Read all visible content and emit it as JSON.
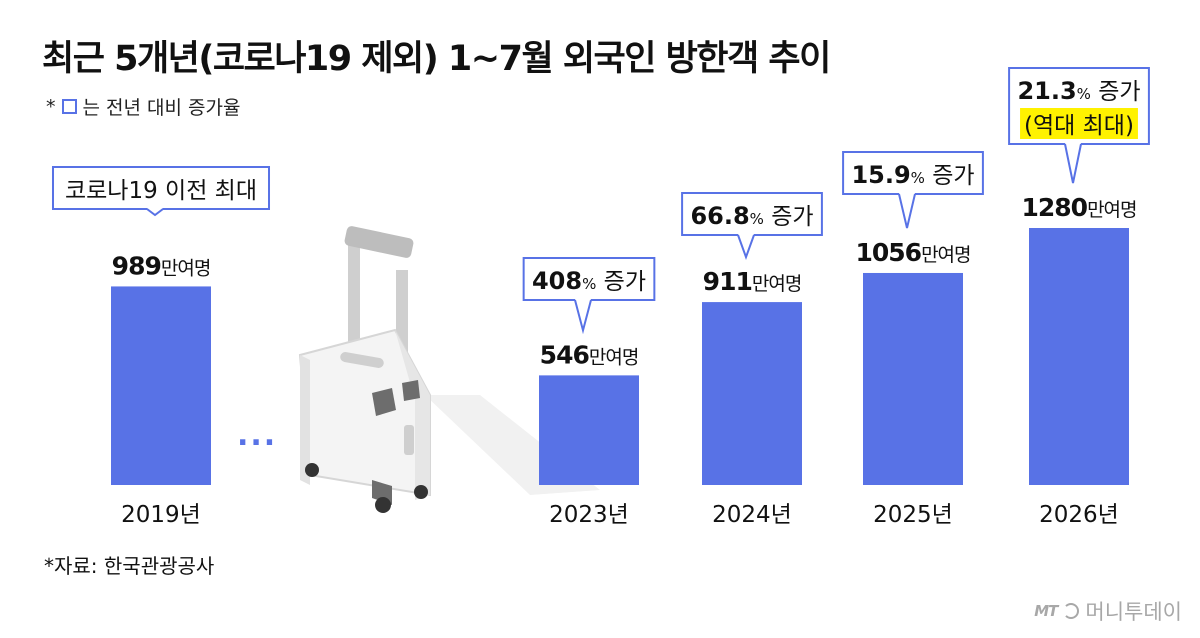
{
  "header": {
    "title": "최근 5개년(코로나19 제외) 1~7월 외국인 방한객 추이",
    "note_prefix": "*",
    "note_text": "는 전년 대비 증가율"
  },
  "footer": {
    "source": "*자료: 한국관광공사",
    "watermark": "머니투데이",
    "watermark_logo": "MT"
  },
  "colors": {
    "bar": "#5872e6",
    "callout_border": "#5872e6",
    "highlight": "#fff200"
  },
  "decor": {
    "ellipsis": "...",
    "illustration": "suitcase-illustration"
  },
  "chart_data": {
    "type": "bar",
    "title": "최근 5개년(코로나19 제외) 1~7월 외국인 방한객 추이",
    "xlabel": "",
    "ylabel": "",
    "unit": "만여명",
    "ylim": [
      0,
      1280
    ],
    "grid": false,
    "categories": [
      "2019년",
      "2023년",
      "2024년",
      "2025년",
      "2026년"
    ],
    "values": [
      989,
      546,
      911,
      1056,
      1280
    ],
    "value_labels": [
      "989",
      "546",
      "911",
      "1056",
      "1280"
    ],
    "growth": [
      {
        "category": "2019년",
        "lines": [
          {
            "num": "코로나19 이전 최대",
            "rest": ""
          }
        ]
      },
      {
        "category": "2023년",
        "lines": [
          {
            "num": "408",
            "pct": "%",
            "rest": " 증가"
          }
        ]
      },
      {
        "category": "2024년",
        "lines": [
          {
            "num": "66.8",
            "pct": "%",
            "rest": " 증가"
          }
        ]
      },
      {
        "category": "2025년",
        "lines": [
          {
            "num": "15.9",
            "pct": "%",
            "rest": " 증가"
          }
        ]
      },
      {
        "category": "2026년",
        "lines": [
          {
            "num": "21.3",
            "pct": "%",
            "rest": " 증가"
          },
          {
            "num": "(역대 최대)",
            "rest": "",
            "highlight": true
          }
        ]
      }
    ]
  }
}
